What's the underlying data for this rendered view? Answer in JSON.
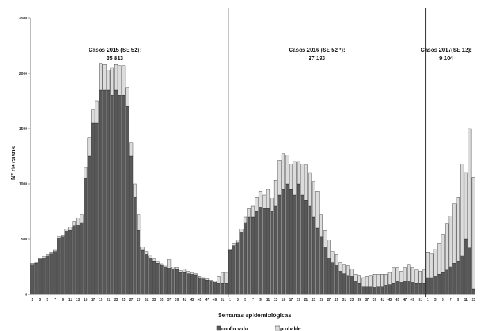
{
  "chart_data": {
    "type": "bar",
    "stacked": true,
    "title": "",
    "xlabel": "Semanas epidemiológicas",
    "ylabel": "N° de casos",
    "ylim": [
      0,
      2500
    ],
    "yticks": [
      0,
      500,
      1000,
      1500,
      2000,
      2500
    ],
    "grid": false,
    "legend_position": "bottom",
    "colors": {
      "confirmado": "#585858",
      "probable": "#dcdcdc",
      "edge": "#2a2a2a",
      "axis": "#555555"
    },
    "series": [
      {
        "name": "confirmado",
        "color": "#585858"
      },
      {
        "name": "probable",
        "color": "#dcdcdc"
      }
    ],
    "years": [
      {
        "year": "2015",
        "annotation_line1": "Casos 2015 (SE 52):",
        "annotation_line2": "35 813",
        "confirmado": [
          270,
          280,
          320,
          330,
          350,
          370,
          390,
          510,
          520,
          570,
          580,
          620,
          630,
          650,
          1050,
          1250,
          1550,
          1550,
          1850,
          1850,
          1850,
          1800,
          1850,
          1800,
          1800,
          1700,
          1250,
          880,
          580,
          400,
          360,
          330,
          300,
          280,
          260,
          250,
          235,
          230,
          225,
          200,
          200,
          190,
          185,
          175,
          150,
          140,
          130,
          120,
          110,
          100,
          100,
          100
        ],
        "probable": [
          10,
          10,
          10,
          10,
          10,
          10,
          10,
          10,
          15,
          20,
          30,
          40,
          60,
          70,
          100,
          170,
          120,
          200,
          240,
          230,
          180,
          250,
          230,
          270,
          270,
          170,
          120,
          120,
          140,
          30,
          30,
          20,
          20,
          15,
          15,
          15,
          80,
          15,
          15,
          15,
          30,
          20,
          15,
          15,
          10,
          10,
          10,
          10,
          10,
          60,
          100,
          100
        ]
      },
      {
        "year": "2016",
        "annotation_line1": "Casos 2016 (SE 52 *):",
        "annotation_line2": "27 193",
        "confirmado": [
          400,
          440,
          470,
          560,
          650,
          700,
          700,
          750,
          790,
          780,
          780,
          750,
          800,
          900,
          950,
          1000,
          950,
          900,
          1000,
          900,
          850,
          800,
          700,
          600,
          520,
          430,
          330,
          290,
          260,
          210,
          190,
          170,
          160,
          120,
          100,
          70,
          70,
          70,
          60,
          70,
          70,
          80,
          90,
          100,
          120,
          110,
          120,
          120,
          110,
          100,
          100,
          100
        ],
        "probable": [
          10,
          20,
          20,
          30,
          50,
          80,
          100,
          130,
          140,
          120,
          170,
          120,
          230,
          310,
          320,
          260,
          230,
          300,
          200,
          280,
          320,
          300,
          320,
          330,
          200,
          150,
          160,
          100,
          100,
          80,
          80,
          90,
          70,
          60,
          70,
          80,
          90,
          100,
          120,
          110,
          110,
          100,
          110,
          140,
          120,
          100,
          120,
          150,
          130,
          120,
          110,
          120
        ]
      },
      {
        "year": "2017",
        "annotation_line1": "Casos 2017(SE 12):",
        "annotation_line2": "9 104",
        "confirmado": [
          150,
          150,
          160,
          180,
          200,
          220,
          250,
          280,
          300,
          350,
          500,
          420,
          50
        ],
        "probable": [
          230,
          220,
          250,
          280,
          340,
          420,
          460,
          540,
          580,
          830,
          600,
          1080,
          1010
        ]
      }
    ],
    "xticks_2015": [
      "1",
      "3",
      "5",
      "7",
      "9",
      "11",
      "13",
      "15",
      "17",
      "19",
      "21",
      "23",
      "25",
      "27",
      "29",
      "31",
      "33",
      "35",
      "37",
      "39",
      "41",
      "43",
      "45",
      "47",
      "49",
      "51"
    ],
    "xticks_2016": [
      "1",
      "3",
      "5",
      "7",
      "9",
      "11",
      "13",
      "15",
      "17",
      "19",
      "21",
      "23",
      "25",
      "27",
      "29",
      "31",
      "33",
      "35",
      "37",
      "39",
      "41",
      "43",
      "45",
      "47",
      "49",
      "51"
    ],
    "xticks_2017": [
      "1",
      "3",
      "5",
      "7",
      "9",
      "11",
      "13"
    ]
  }
}
